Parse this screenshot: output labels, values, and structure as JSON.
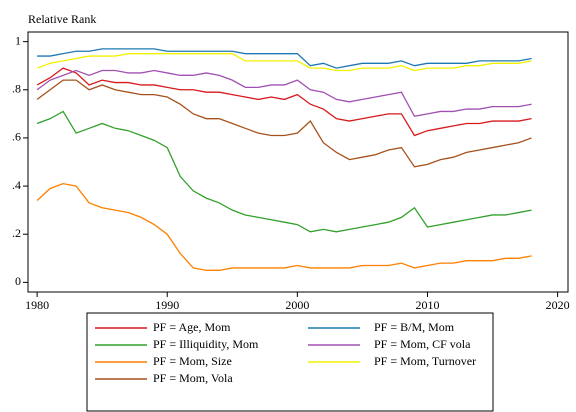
{
  "chart_data": {
    "type": "line",
    "ylabel": "Relative Rank",
    "x": [
      1980,
      1981,
      1982,
      1983,
      1984,
      1985,
      1986,
      1987,
      1988,
      1989,
      1990,
      1991,
      1992,
      1993,
      1994,
      1995,
      1996,
      1997,
      1998,
      1999,
      2000,
      2001,
      2002,
      2003,
      2004,
      2005,
      2006,
      2007,
      2008,
      2009,
      2010,
      2011,
      2012,
      2013,
      2014,
      2015,
      2016,
      2017,
      2018
    ],
    "xlim": [
      1979.3,
      2020.8
    ],
    "xticks": [
      1980,
      1990,
      2000,
      2010,
      2020
    ],
    "ylim": [
      -0.04,
      1.04
    ],
    "yticks": [
      0,
      {
        "value": 0.2,
        "label": ".2"
      },
      {
        "value": 0.4,
        "label": ".4"
      },
      {
        "value": 0.6,
        "label": ".6"
      },
      {
        "value": 0.8,
        "label": ".8"
      },
      1
    ],
    "grid": false,
    "series": [
      {
        "name": "PF = Age, Mom",
        "color": "#d7191c",
        "values": [
          0.82,
          0.85,
          0.89,
          0.87,
          0.82,
          0.84,
          0.83,
          0.83,
          0.82,
          0.82,
          0.81,
          0.8,
          0.8,
          0.79,
          0.79,
          0.78,
          0.77,
          0.76,
          0.77,
          0.76,
          0.78,
          0.74,
          0.72,
          0.68,
          0.67,
          0.68,
          0.69,
          0.7,
          0.7,
          0.61,
          0.63,
          0.64,
          0.65,
          0.66,
          0.66,
          0.67,
          0.67,
          0.67,
          0.68
        ]
      },
      {
        "name": "PF = B/M, Mom",
        "color": "#1f78b4",
        "values": [
          0.94,
          0.94,
          0.95,
          0.96,
          0.96,
          0.97,
          0.97,
          0.97,
          0.97,
          0.97,
          0.96,
          0.96,
          0.96,
          0.96,
          0.96,
          0.96,
          0.95,
          0.95,
          0.95,
          0.95,
          0.95,
          0.9,
          0.91,
          0.89,
          0.9,
          0.91,
          0.91,
          0.91,
          0.92,
          0.9,
          0.91,
          0.91,
          0.91,
          0.91,
          0.92,
          0.92,
          0.92,
          0.92,
          0.93
        ]
      },
      {
        "name": "PF = Illiquidity, Mom",
        "color": "#33a02c",
        "values": [
          0.66,
          0.68,
          0.71,
          0.62,
          0.64,
          0.66,
          0.64,
          0.63,
          0.61,
          0.59,
          0.56,
          0.44,
          0.38,
          0.35,
          0.33,
          0.3,
          0.28,
          0.27,
          0.26,
          0.25,
          0.24,
          0.21,
          0.22,
          0.21,
          0.22,
          0.23,
          0.24,
          0.25,
          0.27,
          0.31,
          0.23,
          0.24,
          0.25,
          0.26,
          0.27,
          0.28,
          0.28,
          0.29,
          0.3
        ]
      },
      {
        "name": "PF = Mom, CF vola",
        "color": "#a050b0",
        "values": [
          0.8,
          0.84,
          0.86,
          0.88,
          0.86,
          0.88,
          0.88,
          0.87,
          0.87,
          0.88,
          0.87,
          0.86,
          0.86,
          0.87,
          0.86,
          0.84,
          0.81,
          0.81,
          0.82,
          0.82,
          0.84,
          0.8,
          0.79,
          0.76,
          0.75,
          0.76,
          0.77,
          0.78,
          0.79,
          0.69,
          0.7,
          0.71,
          0.71,
          0.72,
          0.72,
          0.73,
          0.73,
          0.73,
          0.74
        ]
      },
      {
        "name": "PF = Mom, Size",
        "color": "#ff7f00",
        "values": [
          0.34,
          0.39,
          0.41,
          0.4,
          0.33,
          0.31,
          0.3,
          0.29,
          0.27,
          0.24,
          0.2,
          0.12,
          0.06,
          0.05,
          0.05,
          0.06,
          0.06,
          0.06,
          0.06,
          0.06,
          0.07,
          0.06,
          0.06,
          0.06,
          0.06,
          0.07,
          0.07,
          0.07,
          0.08,
          0.06,
          0.07,
          0.08,
          0.08,
          0.09,
          0.09,
          0.09,
          0.1,
          0.1,
          0.11
        ]
      },
      {
        "name": "PF = Mom, Turnover",
        "color": "#f2f200",
        "values": [
          0.89,
          0.91,
          0.92,
          0.93,
          0.94,
          0.94,
          0.94,
          0.95,
          0.95,
          0.95,
          0.95,
          0.95,
          0.95,
          0.95,
          0.95,
          0.95,
          0.92,
          0.92,
          0.92,
          0.92,
          0.92,
          0.89,
          0.89,
          0.88,
          0.88,
          0.89,
          0.89,
          0.89,
          0.9,
          0.88,
          0.89,
          0.89,
          0.89,
          0.9,
          0.9,
          0.91,
          0.91,
          0.91,
          0.92
        ]
      },
      {
        "name": "PF = Mom, Vola",
        "color": "#a6511c",
        "values": [
          0.76,
          0.8,
          0.84,
          0.84,
          0.8,
          0.82,
          0.8,
          0.79,
          0.78,
          0.78,
          0.77,
          0.74,
          0.7,
          0.68,
          0.68,
          0.66,
          0.64,
          0.62,
          0.61,
          0.61,
          0.62,
          0.67,
          0.58,
          0.54,
          0.51,
          0.52,
          0.53,
          0.55,
          0.56,
          0.48,
          0.49,
          0.51,
          0.52,
          0.54,
          0.55,
          0.56,
          0.57,
          0.58,
          0.6
        ]
      }
    ]
  }
}
